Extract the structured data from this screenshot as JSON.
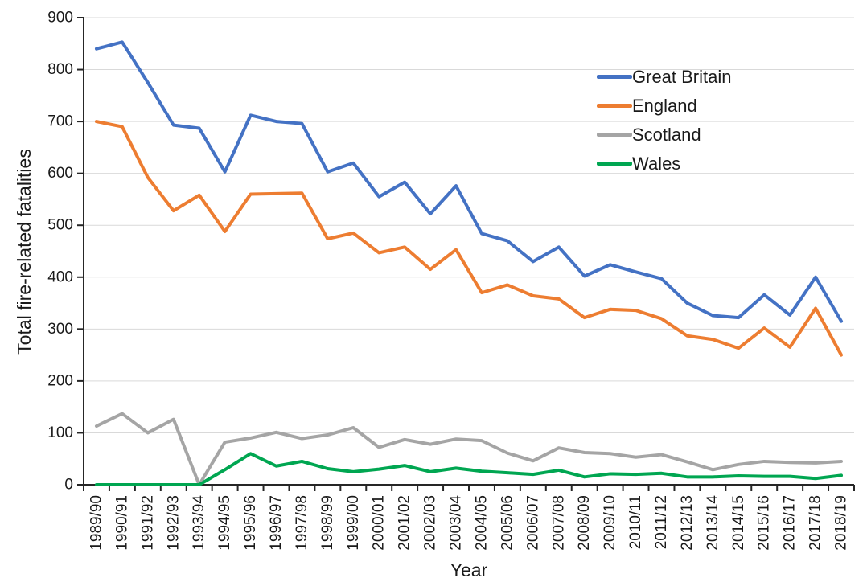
{
  "chart_data": {
    "type": "line",
    "title": "",
    "xlabel": "Year",
    "ylabel": "Total fire-related fatalities",
    "ylim": [
      0,
      900
    ],
    "yticks": [
      0,
      100,
      200,
      300,
      400,
      500,
      600,
      700,
      800,
      900
    ],
    "grid": "horizontal",
    "legend_position": "top-right",
    "categories": [
      "1989/90",
      "1990/91",
      "1991/92",
      "1992/93",
      "1993/94",
      "1994/95",
      "1995/96",
      "1996/97",
      "1997/98",
      "1998/99",
      "1999/00",
      "2000/01",
      "2001/02",
      "2002/03",
      "2003/04",
      "2004/05",
      "2005/06",
      "2006/07",
      "2007/08",
      "2008/09",
      "2009/10",
      "2010/11",
      "2011/12",
      "2012/13",
      "2013/14",
      "2014/15",
      "2015/16",
      "2016/17",
      "2017/18",
      "2018/19"
    ],
    "series": [
      {
        "name": "Great Britain",
        "color": "#4472C4",
        "values": [
          840,
          853,
          775,
          693,
          687,
          603,
          712,
          700,
          696,
          603,
          620,
          555,
          583,
          522,
          576,
          484,
          470,
          430,
          458,
          402,
          424,
          410,
          397,
          350,
          326,
          322,
          366,
          327,
          400,
          315
        ]
      },
      {
        "name": "England",
        "color": "#ED7D31",
        "values": [
          700,
          690,
          592,
          528,
          558,
          488,
          560,
          561,
          562,
          474,
          485,
          447,
          458,
          415,
          453,
          370,
          385,
          364,
          358,
          322,
          338,
          336,
          320,
          287,
          280,
          263,
          302,
          265,
          340,
          250
        ]
      },
      {
        "name": "Scotland",
        "color": "#A5A5A5",
        "values": [
          113,
          137,
          100,
          126,
          0,
          82,
          90,
          101,
          89,
          96,
          110,
          72,
          87,
          78,
          88,
          85,
          61,
          46,
          71,
          62,
          60,
          53,
          58,
          44,
          29,
          39,
          45,
          43,
          42,
          45
        ]
      },
      {
        "name": "Wales",
        "color": "#00A651",
        "values": [
          0,
          0,
          0,
          0,
          0,
          29,
          60,
          36,
          45,
          31,
          25,
          30,
          37,
          25,
          32,
          26,
          23,
          20,
          28,
          15,
          21,
          20,
          22,
          15,
          15,
          17,
          16,
          16,
          12,
          18
        ]
      }
    ],
    "style": {
      "gridline_color": "#D9D9D9",
      "axis_color": "#262626",
      "text_color": "#1a1a1a",
      "line_width": 4
    }
  }
}
